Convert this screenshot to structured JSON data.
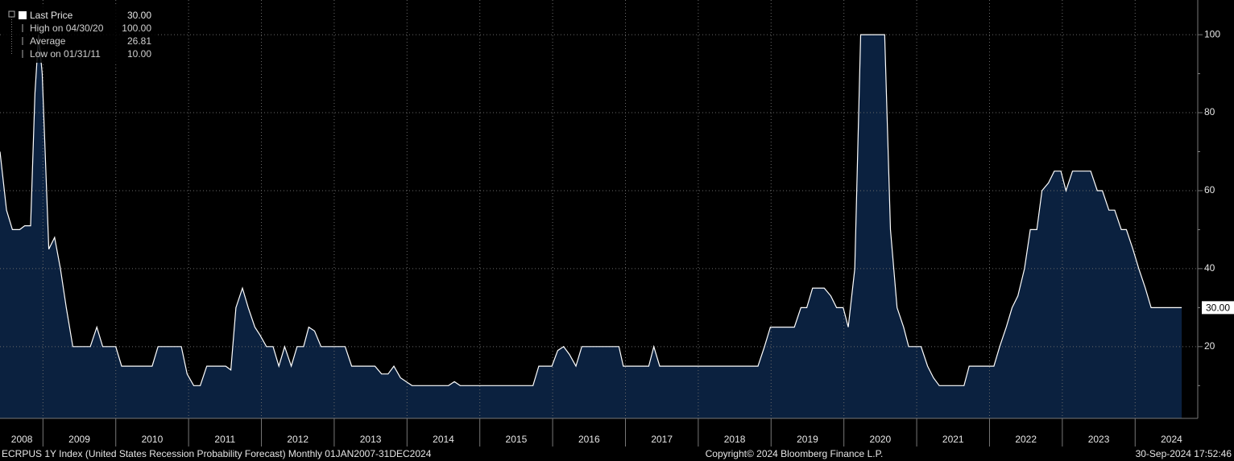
{
  "chart_data": {
    "type": "area",
    "color": "#0b213f",
    "line_color": "#ffffff",
    "grid": true,
    "x": [
      2008.41,
      2008.5,
      2008.58,
      2008.68,
      2008.75,
      2008.83,
      2008.89,
      2008.94,
      2008.99,
      2009.08,
      2009.16,
      2009.24,
      2009.32,
      2009.41,
      2009.65,
      2009.74,
      2009.82,
      2010.0,
      2010.08,
      2010.5,
      2010.58,
      2010.9,
      2010.98,
      2011.07,
      2011.16,
      2011.25,
      2011.51,
      2011.58,
      2011.65,
      2011.74,
      2011.82,
      2011.91,
      2011.98,
      2012.07,
      2012.16,
      2012.24,
      2012.32,
      2012.41,
      2012.49,
      2012.58,
      2012.65,
      2012.73,
      2012.82,
      2013.15,
      2013.24,
      2013.56,
      2013.65,
      2013.74,
      2013.82,
      2013.91,
      2014.07,
      2014.57,
      2014.65,
      2014.73,
      2015.73,
      2015.81,
      2015.99,
      2016.07,
      2016.15,
      2016.23,
      2016.32,
      2016.4,
      2016.91,
      2016.97,
      2017.32,
      2017.39,
      2017.47,
      2018.82,
      2018.91,
      2018.99,
      2019.32,
      2019.41,
      2019.49,
      2019.57,
      2019.73,
      2019.82,
      2019.9,
      2019.99,
      2020.06,
      2020.15,
      2020.23,
      2020.56,
      2020.64,
      2020.73,
      2020.82,
      2020.89,
      2021.06,
      2021.15,
      2021.23,
      2021.31,
      2021.65,
      2021.72,
      2022.06,
      2022.14,
      2022.23,
      2022.31,
      2022.39,
      2022.48,
      2022.56,
      2022.65,
      2022.72,
      2022.81,
      2022.89,
      2022.98,
      2023.05,
      2023.14,
      2023.39,
      2023.48,
      2023.55,
      2023.64,
      2023.72,
      2023.81,
      2023.88,
      2023.97,
      2024.05,
      2024.14,
      2024.22,
      2024.64
    ],
    "values": [
      70,
      55,
      50,
      50,
      51,
      51,
      85,
      100,
      90,
      45,
      48,
      40,
      30,
      20,
      20,
      25,
      20,
      20,
      15,
      15,
      20,
      20,
      13,
      10,
      10,
      15,
      15,
      14,
      30,
      35,
      30,
      25,
      23,
      20,
      20,
      15,
      20,
      15,
      20,
      20,
      25,
      24,
      20,
      20,
      15,
      15,
      13,
      13,
      15,
      12,
      10,
      10,
      11,
      10,
      10,
      15,
      15,
      19,
      20,
      18,
      15,
      20,
      20,
      15,
      15,
      20,
      15,
      15,
      20,
      25,
      25,
      30,
      30,
      35,
      35,
      33,
      30,
      30,
      25,
      40,
      100,
      100,
      50,
      30,
      25,
      20,
      20,
      15,
      12,
      10,
      10,
      15,
      15,
      20,
      25,
      30,
      33,
      40,
      50,
      50,
      60,
      62,
      65,
      65,
      60,
      65,
      65,
      60,
      60,
      55,
      55,
      50,
      50,
      45,
      40,
      35,
      30,
      30
    ],
    "xlim": [
      2008.41,
      2024.86
    ],
    "ylim": [
      1.6,
      108.9
    ],
    "yticks": [
      20,
      40,
      60,
      80,
      100
    ],
    "xticks": [
      {
        "value": 2008.71,
        "label": "2008"
      },
      {
        "value": 2009.5,
        "label": "2009"
      },
      {
        "value": 2010.5,
        "label": "2010"
      },
      {
        "value": 2011.5,
        "label": "2011"
      },
      {
        "value": 2012.5,
        "label": "2012"
      },
      {
        "value": 2013.5,
        "label": "2013"
      },
      {
        "value": 2014.5,
        "label": "2014"
      },
      {
        "value": 2015.5,
        "label": "2015"
      },
      {
        "value": 2016.5,
        "label": "2016"
      },
      {
        "value": 2017.5,
        "label": "2017"
      },
      {
        "value": 2018.5,
        "label": "2018"
      },
      {
        "value": 2019.5,
        "label": "2019"
      },
      {
        "value": 2020.5,
        "label": "2020"
      },
      {
        "value": 2021.5,
        "label": "2021"
      },
      {
        "value": 2022.5,
        "label": "2022"
      },
      {
        "value": 2023.5,
        "label": "2023"
      },
      {
        "value": 2024.5,
        "label": "2024"
      }
    ],
    "xgrid": [
      2009,
      2010,
      2011,
      2012,
      2013,
      2014,
      2015,
      2016,
      2017,
      2018,
      2019,
      2020,
      2021,
      2022,
      2023,
      2024
    ],
    "last_value": {
      "value": 30,
      "label": "30.00"
    },
    "legend": [
      {
        "label": "Last Price",
        "value": "30.00"
      },
      {
        "label": "High on 04/30/20",
        "value": "100.00"
      },
      {
        "label": "Average",
        "value": "26.81"
      },
      {
        "label": "Low on 01/31/11",
        "value": "10.00"
      }
    ],
    "footer_left": "ECRPUS 1Y Index (United States Recession Probability Forecast)  Monthly 01JAN2007-31DEC2024",
    "footer_center": "Copyright© 2024 Bloomberg Finance L.P.",
    "footer_right": "30-Sep-2024 17:52:46"
  }
}
